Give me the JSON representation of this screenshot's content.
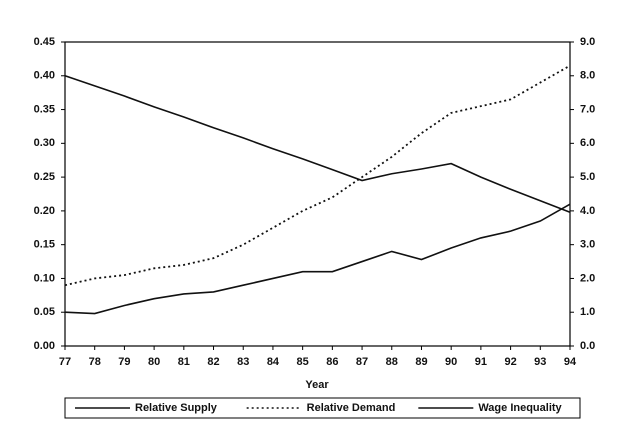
{
  "chart_data": {
    "type": "line",
    "categories": [
      "77",
      "78",
      "79",
      "80",
      "81",
      "82",
      "83",
      "84",
      "85",
      "86",
      "87",
      "88",
      "89",
      "90",
      "91",
      "92",
      "93",
      "94"
    ],
    "x_label": "Year",
    "series": [
      {
        "name": "Relative Supply",
        "color": "#111111",
        "dash": "solid",
        "values": [
          0.05,
          0.048,
          0.06,
          0.07,
          0.077,
          0.08,
          0.09,
          0.1,
          0.11,
          0.11,
          0.125,
          0.14,
          0.128,
          0.145,
          0.16,
          0.17,
          0.185,
          0.21
        ]
      },
      {
        "name": "Relative Demand",
        "color": "#111111",
        "dash": "dotted",
        "axis": "y2",
        "values": [
          1.8,
          2.0,
          2.1,
          2.3,
          2.4,
          2.6,
          3.0,
          3.5,
          4.0,
          4.4,
          5.0,
          5.6,
          6.3,
          6.9,
          7.1,
          7.3,
          7.8,
          8.3
        ]
      },
      {
        "name": "Wage Inequality",
        "color": "#111111",
        "dash": "solid",
        "values": [
          0.4,
          0.385,
          0.37,
          0.354,
          0.339,
          0.323,
          0.308,
          0.292,
          0.277,
          0.261,
          0.245,
          0.255,
          0.262,
          0.27,
          0.25,
          0.232,
          0.215,
          0.198
        ]
      }
    ],
    "ylim": [
      0,
      0.45
    ],
    "yticks": [
      {
        "value": 0,
        "label": "0.00"
      },
      {
        "value": 0.05,
        "label": "0.05"
      },
      {
        "value": 0.1,
        "label": "0.10"
      },
      {
        "value": 0.15,
        "label": "0.15"
      },
      {
        "value": 0.2,
        "label": "0.20"
      },
      {
        "value": 0.25,
        "label": "0.25"
      },
      {
        "value": 0.3,
        "label": "0.30"
      },
      {
        "value": 0.35,
        "label": "0.35"
      },
      {
        "value": 0.4,
        "label": "0.40"
      },
      {
        "value": 0.45,
        "label": "0.45"
      }
    ],
    "y2lim": [
      0,
      9
    ],
    "y2ticks": [
      {
        "value": 0,
        "label": "0.0"
      },
      {
        "value": 1,
        "label": "1.0"
      },
      {
        "value": 2,
        "label": "2.0"
      },
      {
        "value": 3,
        "label": "3.0"
      },
      {
        "value": 4,
        "label": "4.0"
      },
      {
        "value": 5,
        "label": "5.0"
      },
      {
        "value": 6,
        "label": "6.0"
      },
      {
        "value": 7,
        "label": "7.0"
      },
      {
        "value": 8,
        "label": "8.0"
      },
      {
        "value": 9,
        "label": "9.0"
      }
    ],
    "grid": false,
    "legend": "bottom"
  }
}
